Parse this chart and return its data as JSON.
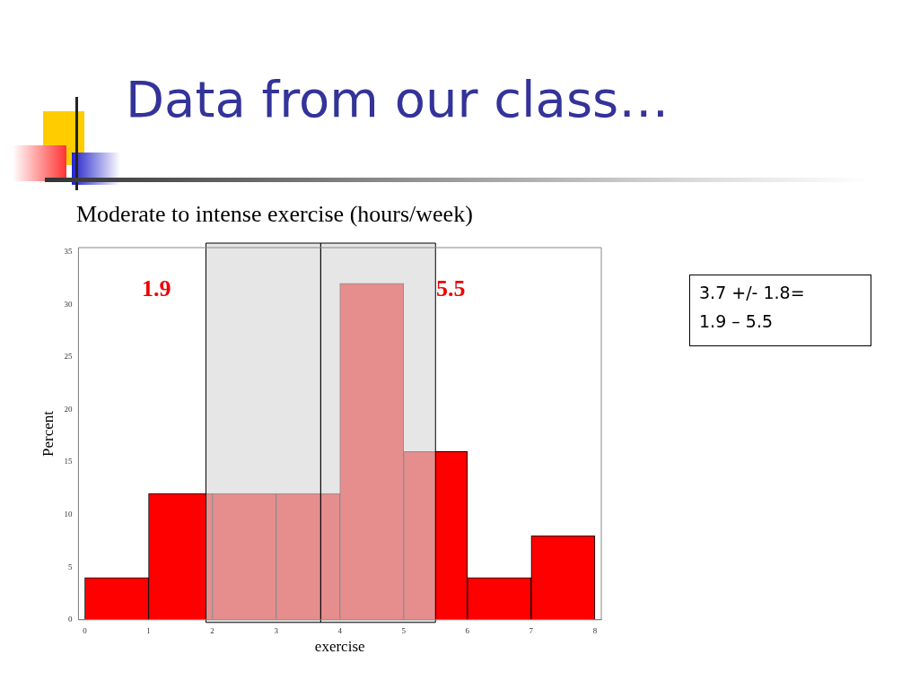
{
  "chart_data": {
    "type": "histogram",
    "title": "Data from our class…",
    "subtitle": "Moderate to intense exercise (hours/week)",
    "xlabel": "exercise",
    "ylabel": "Percent",
    "bins": [
      0,
      1,
      2,
      3,
      4,
      5,
      6,
      7,
      8
    ],
    "values": [
      4,
      12,
      12,
      12,
      32,
      16,
      4,
      8
    ],
    "color": "#ff0000",
    "xlim": [
      -0.1,
      8.1
    ],
    "xticks": [
      0,
      1,
      2,
      3,
      4,
      5,
      6,
      7,
      8
    ],
    "ylim": [
      0,
      35.4
    ],
    "yticks": [
      0,
      5,
      10,
      15,
      20,
      25,
      30,
      35
    ],
    "grid": false,
    "legend": false,
    "bands": [
      {
        "axis": "x",
        "from": 1.9,
        "to": 3.7,
        "color": "#d9d9d9"
      },
      {
        "axis": "x",
        "from": 3.7,
        "to": 5.5,
        "color": "#d9d9d9"
      }
    ],
    "annotations": [
      "1.9",
      "5.5",
      "3.7 +/- 1.8=",
      "1.9 – 5.5"
    ]
  }
}
